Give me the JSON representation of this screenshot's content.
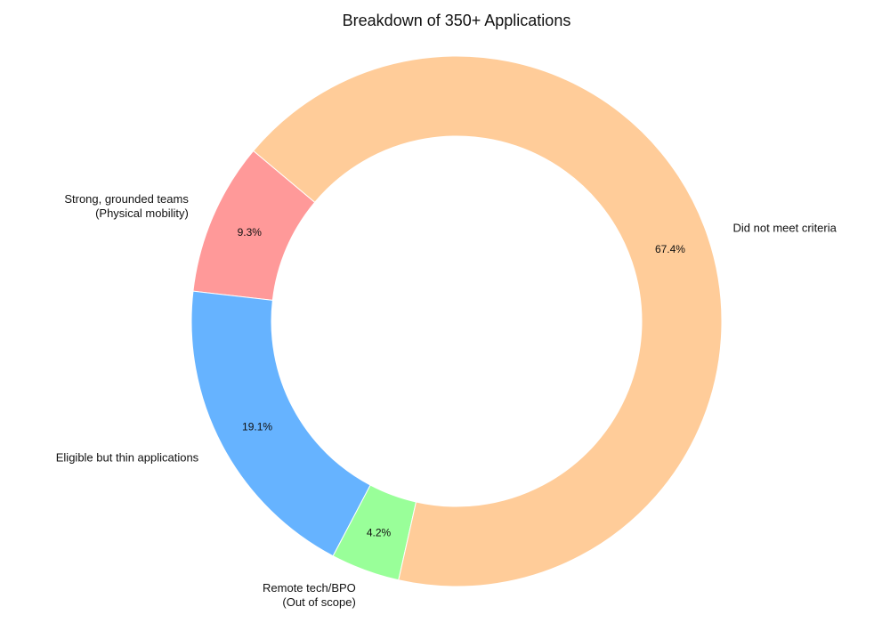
{
  "chart_data": {
    "type": "pie",
    "variant": "donut",
    "title": "Breakdown of 350+ Applications",
    "start_angle_deg": 140,
    "direction": "counterclockwise",
    "slices": [
      {
        "label": "Strong, grounded teams\n(Physical mobility)",
        "value": 9.3,
        "pct_label": "9.3%",
        "color": "#ff9999"
      },
      {
        "label": "Eligible but thin applications",
        "value": 19.1,
        "pct_label": "19.1%",
        "color": "#66b3ff"
      },
      {
        "label": "Remote tech/BPO\n(Out of scope)",
        "value": 4.2,
        "pct_label": "4.2%",
        "color": "#99ff99"
      },
      {
        "label": "Did not meet criteria",
        "value": 67.4,
        "pct_label": "67.4%",
        "color": "#ffcc99"
      }
    ],
    "legend": "none"
  }
}
